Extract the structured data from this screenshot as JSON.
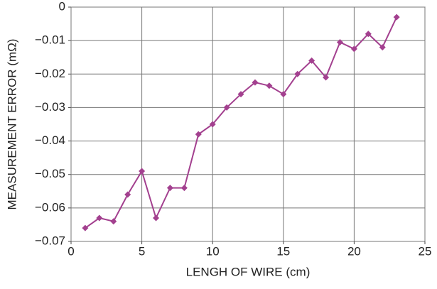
{
  "chart_data": {
    "type": "line",
    "x_label": "LENGH OF WIRE (cm)",
    "y_label": "MEASUREMENT ERROR (mΩ)",
    "x": [
      1,
      2,
      3,
      4,
      5,
      6,
      7,
      8,
      9,
      10,
      11,
      12,
      13,
      14,
      15,
      16,
      17,
      18,
      19,
      20,
      21,
      22,
      23
    ],
    "series": [
      {
        "color": "#a3408f",
        "values": [
          -0.066,
          -0.063,
          -0.064,
          -0.056,
          -0.049,
          -0.063,
          -0.054,
          -0.054,
          -0.038,
          -0.035,
          -0.03,
          -0.026,
          -0.0225,
          -0.0235,
          -0.026,
          -0.02,
          -0.016,
          -0.021,
          -0.0105,
          -0.0125,
          -0.008,
          -0.012,
          -0.003
        ]
      }
    ],
    "xlim": [
      0,
      25
    ],
    "xticks": [
      0,
      5,
      10,
      15,
      20,
      25
    ],
    "ylim": [
      -0.07,
      0
    ],
    "yticks": [
      {
        "value": -0.07,
        "label": "−0.07"
      },
      {
        "value": -0.06,
        "label": "−0.06"
      },
      {
        "value": -0.05,
        "label": "−0.05"
      },
      {
        "value": -0.04,
        "label": "−0.04"
      },
      {
        "value": -0.03,
        "label": "−0.03"
      },
      {
        "value": -0.02,
        "label": "−0.02"
      },
      {
        "value": -0.01,
        "label": "−0.01"
      },
      0
    ],
    "grid": true
  }
}
